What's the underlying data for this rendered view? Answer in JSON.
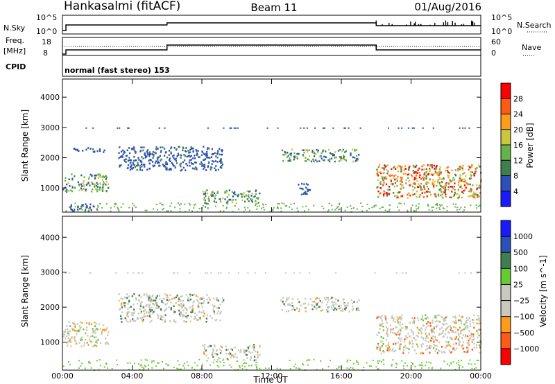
{
  "header": {
    "station": "Hankasalmi (fitACF)",
    "beam": "Beam 11",
    "date": "01/Aug/2016"
  },
  "summary_panels": {
    "nsky_label": "N.Sky",
    "nsky_ticks": [
      "10^5",
      "10^0"
    ],
    "nsearch_label": "N.Search",
    "nsearch_ticks": [
      "10^5",
      "10^0"
    ],
    "freq_label_1": "Freq.",
    "freq_label_2": "[MHz]",
    "freq_ticks": [
      "18",
      "8"
    ],
    "nave_label": "Nave",
    "nave_ticks": [
      "60",
      "0"
    ],
    "cpid_label": "CPID",
    "cpid_text": "normal (fast stereo) 153"
  },
  "colors": {
    "power_scale": [
      "#1a1aff",
      "#2d4fb8",
      "#3f7f4f",
      "#66b34c",
      "#c8c83a",
      "#ff9b1a",
      "#ff5a14",
      "#ff0000"
    ],
    "velocity_scale": [
      "#ff0000",
      "#ff5a14",
      "#ff9b1a",
      "#c8c8c0",
      "#c8c8c0",
      "#66cc33",
      "#3f7f4f",
      "#2d4fb8",
      "#1a1aff"
    ]
  },
  "chart_data": [
    {
      "type": "heatmap",
      "name": "power",
      "ylabel": "Slant Range [km]",
      "xlabel": "",
      "ylim": [
        200,
        4600
      ],
      "yticks": [
        "4000",
        "3000",
        "2000",
        "1000"
      ],
      "colorbar_label": "Power [dB]",
      "colorbar_ticks": [
        "28",
        "24",
        "20",
        "16",
        "12",
        "8",
        "4"
      ],
      "xlim_hours": [
        0,
        24
      ],
      "features": [
        {
          "t0": 0.0,
          "t1": 2.6,
          "r0": 900,
          "r1": 1500,
          "level": "high"
        },
        {
          "t0": 0.3,
          "t1": 2.0,
          "r0": 250,
          "r1": 500,
          "level": "low"
        },
        {
          "t0": 0.6,
          "t1": 2.4,
          "r0": 2200,
          "r1": 2350,
          "level": "low"
        },
        {
          "t0": 3.2,
          "t1": 9.2,
          "r0": 1600,
          "r1": 2400,
          "level": "low"
        },
        {
          "t0": 8.0,
          "t1": 11.3,
          "r0": 500,
          "r1": 950,
          "level": "medium"
        },
        {
          "t0": 12.5,
          "t1": 17.0,
          "r0": 1900,
          "r1": 2300,
          "level": "medium"
        },
        {
          "t0": 13.5,
          "t1": 14.2,
          "r0": 800,
          "r1": 1200,
          "level": "low"
        },
        {
          "t0": 18.0,
          "t1": 24.0,
          "r0": 700,
          "r1": 1800,
          "level": "very high"
        }
      ]
    },
    {
      "type": "heatmap",
      "name": "velocity",
      "ylabel": "Slant Range [km]",
      "xlabel": "Time UT",
      "ylim": [
        200,
        4600
      ],
      "yticks": [
        "4000",
        "3000",
        "2000",
        "1000"
      ],
      "colorbar_label": "Velocity [m s^-1]",
      "colorbar_ticks": [
        "1000",
        "500",
        "100",
        "25",
        "−25",
        "−100",
        "−500",
        "−1000"
      ],
      "x": [
        "00:00",
        "04:00",
        "08:00",
        "12:00",
        "16:00",
        "20:00",
        "00:00"
      ],
      "xlim_hours": [
        0,
        24
      ],
      "features": [
        {
          "t0": 0.0,
          "t1": 2.6,
          "r0": 900,
          "r1": 1600,
          "level": "near zero / negative"
        },
        {
          "t0": 3.2,
          "t1": 9.2,
          "r0": 1600,
          "r1": 2400,
          "level": "near zero"
        },
        {
          "t0": 8.0,
          "t1": 11.3,
          "r0": 500,
          "r1": 950,
          "level": "near zero"
        },
        {
          "t0": 12.5,
          "t1": 17.0,
          "r0": 1900,
          "r1": 2300,
          "level": "near zero"
        },
        {
          "t0": 18.0,
          "t1": 24.0,
          "r0": 700,
          "r1": 1800,
          "level": "positive / negative mixed"
        }
      ]
    }
  ]
}
